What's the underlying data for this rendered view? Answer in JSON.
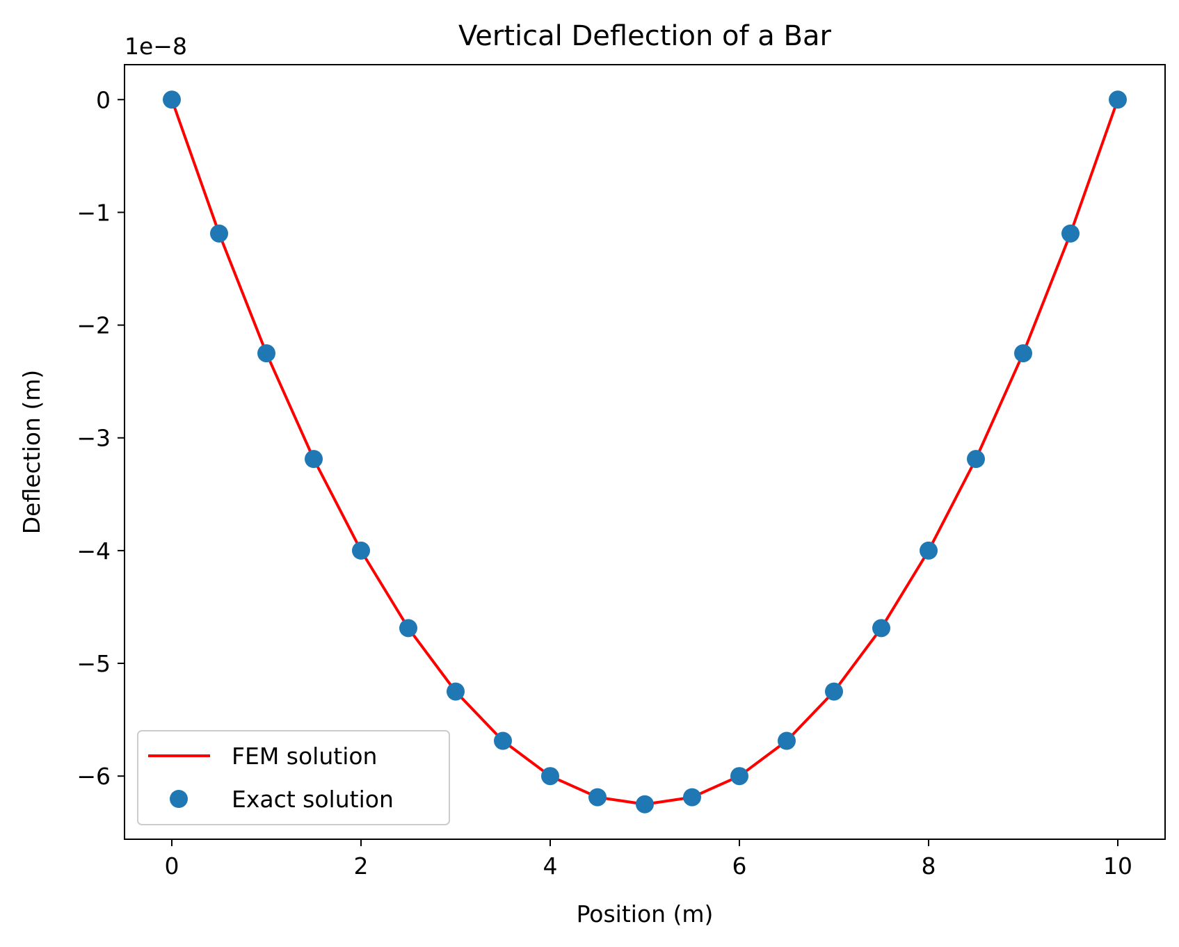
{
  "chart_data": {
    "type": "line",
    "title": "Vertical Deflection of a Bar",
    "xlabel": "Position (m)",
    "ylabel": "Deflection (m)",
    "y_offset_label": "1e−8",
    "xlim": [
      -0.5,
      10.5
    ],
    "ylim": [
      -6.56,
      0.31
    ],
    "x_ticks": [
      0,
      2,
      4,
      6,
      8,
      10
    ],
    "x_tick_labels": [
      "0",
      "2",
      "4",
      "6",
      "8",
      "10"
    ],
    "y_ticks": [
      0,
      -1,
      -2,
      -3,
      -4,
      -5,
      -6
    ],
    "y_tick_labels": [
      "0",
      "−1",
      "−2",
      "−3",
      "−4",
      "−5",
      "−6"
    ],
    "grid": false,
    "legend_position": "lower left",
    "series": [
      {
        "name": "FEM solution",
        "style": "line",
        "color": "#ff0000",
        "x": [
          0,
          0.5,
          1,
          1.5,
          2,
          2.5,
          3,
          3.5,
          4,
          4.5,
          5,
          5.5,
          6,
          6.5,
          7,
          7.5,
          8,
          8.5,
          9,
          9.5,
          10
        ],
        "y": [
          0,
          -1.1875,
          -2.25,
          -3.1875,
          -4.0,
          -4.6875,
          -5.25,
          -5.6875,
          -6.0,
          -6.1875,
          -6.25,
          -6.1875,
          -6.0,
          -5.6875,
          -5.25,
          -4.6875,
          -4.0,
          -3.1875,
          -2.25,
          -1.1875,
          0
        ]
      },
      {
        "name": "Exact solution",
        "style": "markers",
        "color": "#1f77b4",
        "x": [
          0,
          0.5,
          1,
          1.5,
          2,
          2.5,
          3,
          3.5,
          4,
          4.5,
          5,
          5.5,
          6,
          6.5,
          7,
          7.5,
          8,
          8.5,
          9,
          9.5,
          10
        ],
        "y": [
          0,
          -1.1875,
          -2.25,
          -3.1875,
          -4.0,
          -4.6875,
          -5.25,
          -5.6875,
          -6.0,
          -6.1875,
          -6.25,
          -6.1875,
          -6.0,
          -5.6875,
          -5.25,
          -4.6875,
          -4.0,
          -3.1875,
          -2.25,
          -1.1875,
          0
        ]
      }
    ]
  }
}
